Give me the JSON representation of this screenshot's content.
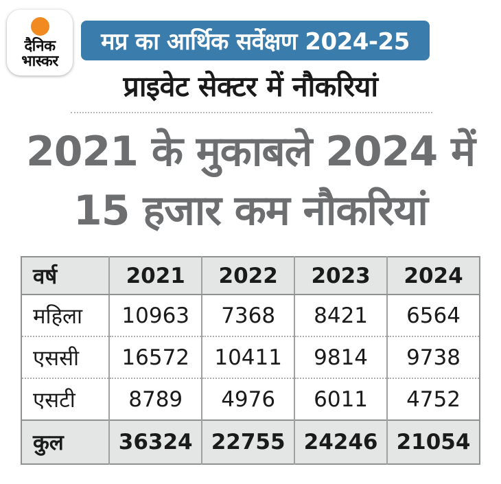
{
  "brand": {
    "name_line1": "दैनिक",
    "name_line2": "भास्कर",
    "sun_color": "#F08A21"
  },
  "banner": {
    "text": "मप्र का आर्थिक सर्वेक्षण 2024-25",
    "bg_color": "#3A7CAB",
    "text_color": "#FFFFFF"
  },
  "subtitle": "प्राइवेट सेक्टर में नौकरियां",
  "headline": {
    "line1": "2021 के मुकाबले 2024 में",
    "line2": "15 हजार कम नौकरियां",
    "color": "#6D6E70"
  },
  "chart_data": {
    "type": "table",
    "title": "प्राइवेट सेक्टर में नौकरियां",
    "columns": [
      "वर्ष",
      "2021",
      "2022",
      "2023",
      "2024"
    ],
    "rows": [
      {
        "label": "महिला",
        "values": [
          "10963",
          "7368",
          "8421",
          "6564"
        ]
      },
      {
        "label": "एससी",
        "values": [
          "16572",
          "10411",
          "9814",
          "9738"
        ]
      },
      {
        "label": "एसटी",
        "values": [
          "8789",
          "4976",
          "6011",
          "4752"
        ]
      },
      {
        "label": "कुल",
        "values": [
          "36324",
          "22755",
          "24246",
          "21054"
        ]
      }
    ],
    "total_row_label": "कुल",
    "header_bg": "#E4E6E5",
    "layout": {
      "grid": "solid-vertical, dotted-horizontal",
      "total_row_bold": true
    }
  }
}
